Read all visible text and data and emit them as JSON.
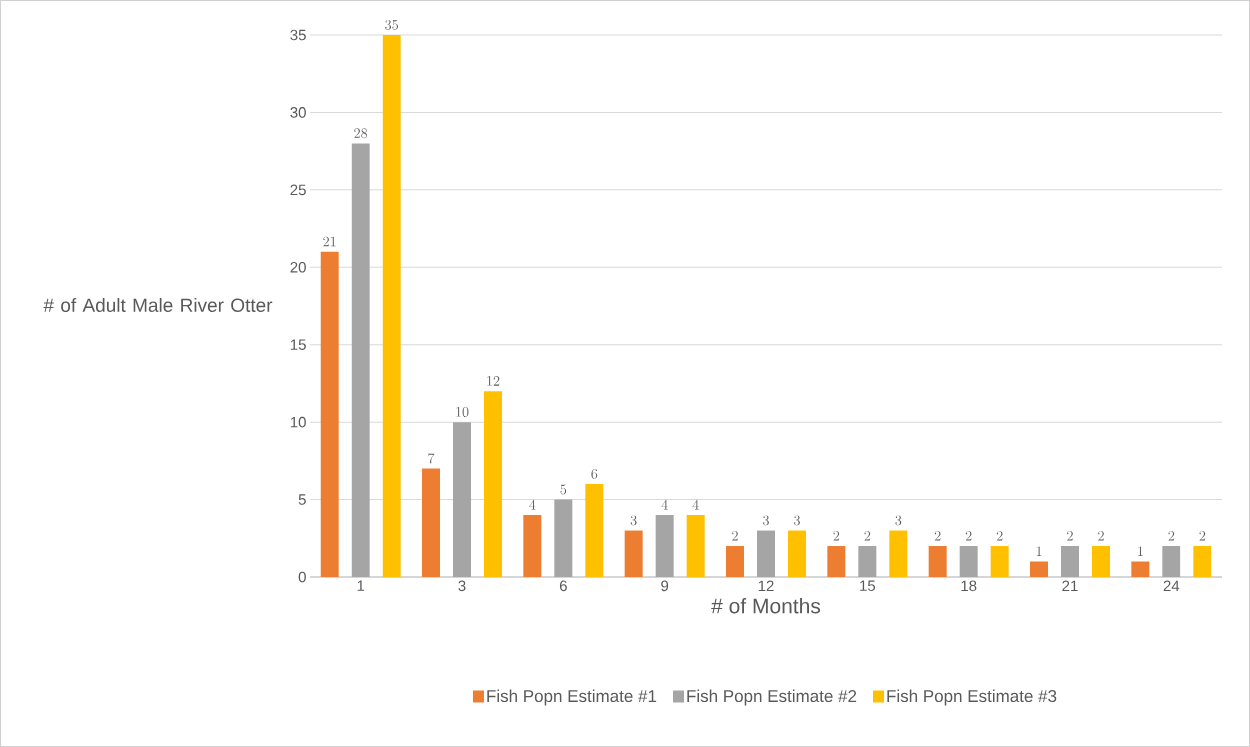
{
  "chart_data": {
    "type": "bar",
    "xlabel": "# of Months",
    "ylabel": "# of Adult Male River Otter",
    "categories": [
      "1",
      "3",
      "6",
      "9",
      "12",
      "15",
      "18",
      "21",
      "24"
    ],
    "series": [
      {
        "name": "Fish Popn Estimate #1",
        "color": "#ed7d31",
        "values": [
          21,
          7,
          4,
          3,
          2,
          2,
          2,
          1,
          1
        ]
      },
      {
        "name": "Fish Popn Estimate #2",
        "color": "#a5a5a5",
        "values": [
          28,
          10,
          5,
          4,
          3,
          2,
          2,
          2,
          2
        ]
      },
      {
        "name": "Fish Popn Estimate #3",
        "color": "#ffc000",
        "values": [
          35,
          12,
          6,
          4,
          3,
          3,
          2,
          2,
          2
        ]
      }
    ],
    "ylim": [
      0,
      35
    ],
    "yticks": [
      0,
      5,
      10,
      15,
      20,
      25,
      30,
      35
    ],
    "grid": "y",
    "legend": "bottom",
    "data_labels": true
  }
}
